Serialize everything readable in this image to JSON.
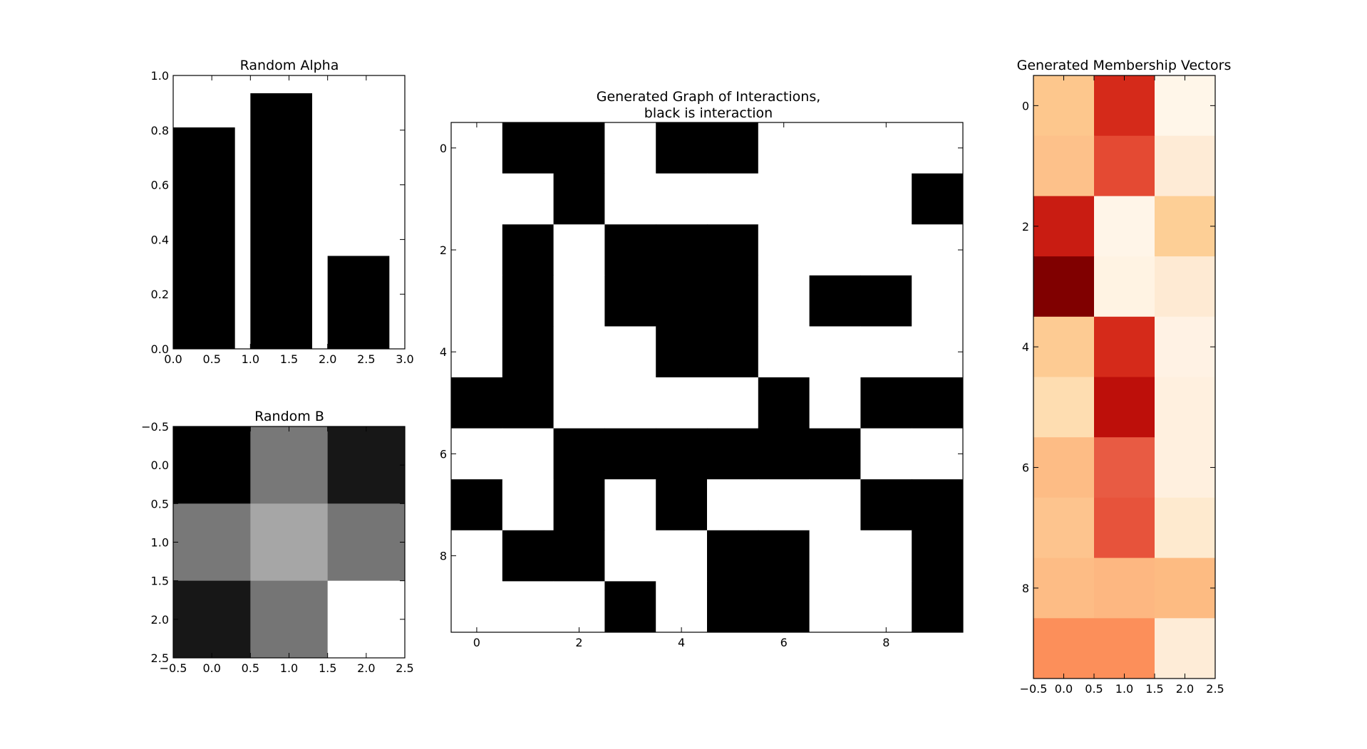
{
  "chart_data": [
    {
      "id": "alpha",
      "type": "bar",
      "title": "Random Alpha",
      "x": [
        0,
        1,
        2
      ],
      "values": [
        0.81,
        0.935,
        0.34
      ],
      "bar_width": 0.8,
      "bar_color": "#000000",
      "xlim": [
        0,
        3
      ],
      "ylim": [
        0,
        1
      ],
      "xticks": [
        0,
        0.5,
        1,
        1.5,
        2,
        2.5,
        3
      ],
      "xtick_labels": [
        "0.0",
        "0.5",
        "1.0",
        "1.5",
        "2.0",
        "2.5",
        "3.0"
      ],
      "yticks": [
        0,
        0.2,
        0.4,
        0.6,
        0.8,
        1.0
      ],
      "ytick_labels": [
        "0.0",
        "0.2",
        "0.4",
        "0.6",
        "0.8",
        "1.0"
      ]
    },
    {
      "id": "b",
      "type": "heatmap",
      "title": "Random B",
      "colormap": "gray",
      "matrix": [
        [
          0.0,
          0.47,
          0.09
        ],
        [
          0.47,
          0.65,
          0.46
        ],
        [
          0.09,
          0.46,
          1.0
        ]
      ],
      "xlim": [
        -0.5,
        2.5
      ],
      "ylim": [
        2.5,
        -0.5
      ],
      "xticks": [
        -0.5,
        0,
        0.5,
        1,
        1.5,
        2,
        2.5
      ],
      "xtick_labels": [
        "−0.5",
        "0.0",
        "0.5",
        "1.0",
        "1.5",
        "2.0",
        "2.5"
      ],
      "yticks": [
        -0.5,
        0,
        0.5,
        1,
        1.5,
        2,
        2.5
      ],
      "ytick_labels": [
        "−0.5",
        "0.0",
        "0.5",
        "1.0",
        "1.5",
        "2.0",
        "2.5"
      ]
    },
    {
      "id": "graph",
      "type": "heatmap",
      "title_lines": [
        "Generated Graph of Interactions,",
        "black is interaction"
      ],
      "colormap": "binary",
      "matrix": [
        [
          0,
          1,
          1,
          0,
          1,
          1,
          0,
          0,
          0,
          0
        ],
        [
          0,
          0,
          1,
          0,
          0,
          0,
          0,
          0,
          0,
          1
        ],
        [
          0,
          1,
          0,
          1,
          1,
          1,
          0,
          0,
          0,
          0
        ],
        [
          0,
          1,
          0,
          1,
          1,
          1,
          0,
          1,
          1,
          0
        ],
        [
          0,
          1,
          0,
          0,
          1,
          1,
          0,
          0,
          0,
          0
        ],
        [
          1,
          1,
          0,
          0,
          0,
          0,
          1,
          0,
          1,
          1
        ],
        [
          0,
          0,
          1,
          1,
          1,
          1,
          1,
          1,
          0,
          0
        ],
        [
          1,
          0,
          1,
          0,
          1,
          0,
          0,
          0,
          1,
          1
        ],
        [
          0,
          1,
          1,
          0,
          0,
          1,
          1,
          0,
          0,
          1
        ],
        [
          0,
          0,
          0,
          1,
          0,
          1,
          1,
          0,
          0,
          1
        ]
      ],
      "xticks": [
        0,
        2,
        4,
        6,
        8
      ],
      "xtick_labels": [
        "0",
        "2",
        "4",
        "6",
        "8"
      ],
      "yticks": [
        0,
        2,
        4,
        6,
        8
      ],
      "ytick_labels": [
        "0",
        "2",
        "4",
        "6",
        "8"
      ]
    },
    {
      "id": "membership",
      "type": "heatmap",
      "title": "Generated Membership Vectors",
      "colormap": "OrRd",
      "cell_colors": [
        [
          "#fdc78d",
          "#d52a1a",
          "#fff6e9"
        ],
        [
          "#fdc18a",
          "#e44a33",
          "#feebd6"
        ],
        [
          "#c91c12",
          "#fff5e8",
          "#fdcf96"
        ],
        [
          "#800000",
          "#fff3e3",
          "#feead3"
        ],
        [
          "#fdcb93",
          "#d52a1a",
          "#fff2e4"
        ],
        [
          "#feddb1",
          "#bd0f0a",
          "#fff0df"
        ],
        [
          "#fdbc85",
          "#e85b43",
          "#fff0df"
        ],
        [
          "#fdc48e",
          "#e7533b",
          "#feeacf"
        ],
        [
          "#fdbc85",
          "#fdb781",
          "#fdbb82"
        ],
        [
          "#fc8f5a",
          "#fc8f5a",
          "#feecd7"
        ]
      ],
      "xticks": [
        -0.5,
        0,
        0.5,
        1,
        1.5,
        2,
        2.5
      ],
      "xtick_labels": [
        "−0.5",
        "0.0",
        "0.5",
        "1.0",
        "1.5",
        "2.0",
        "2.5"
      ],
      "yticks": [
        0,
        2,
        4,
        6,
        8
      ],
      "ytick_labels": [
        "0",
        "2",
        "4",
        "6",
        "8"
      ]
    }
  ]
}
